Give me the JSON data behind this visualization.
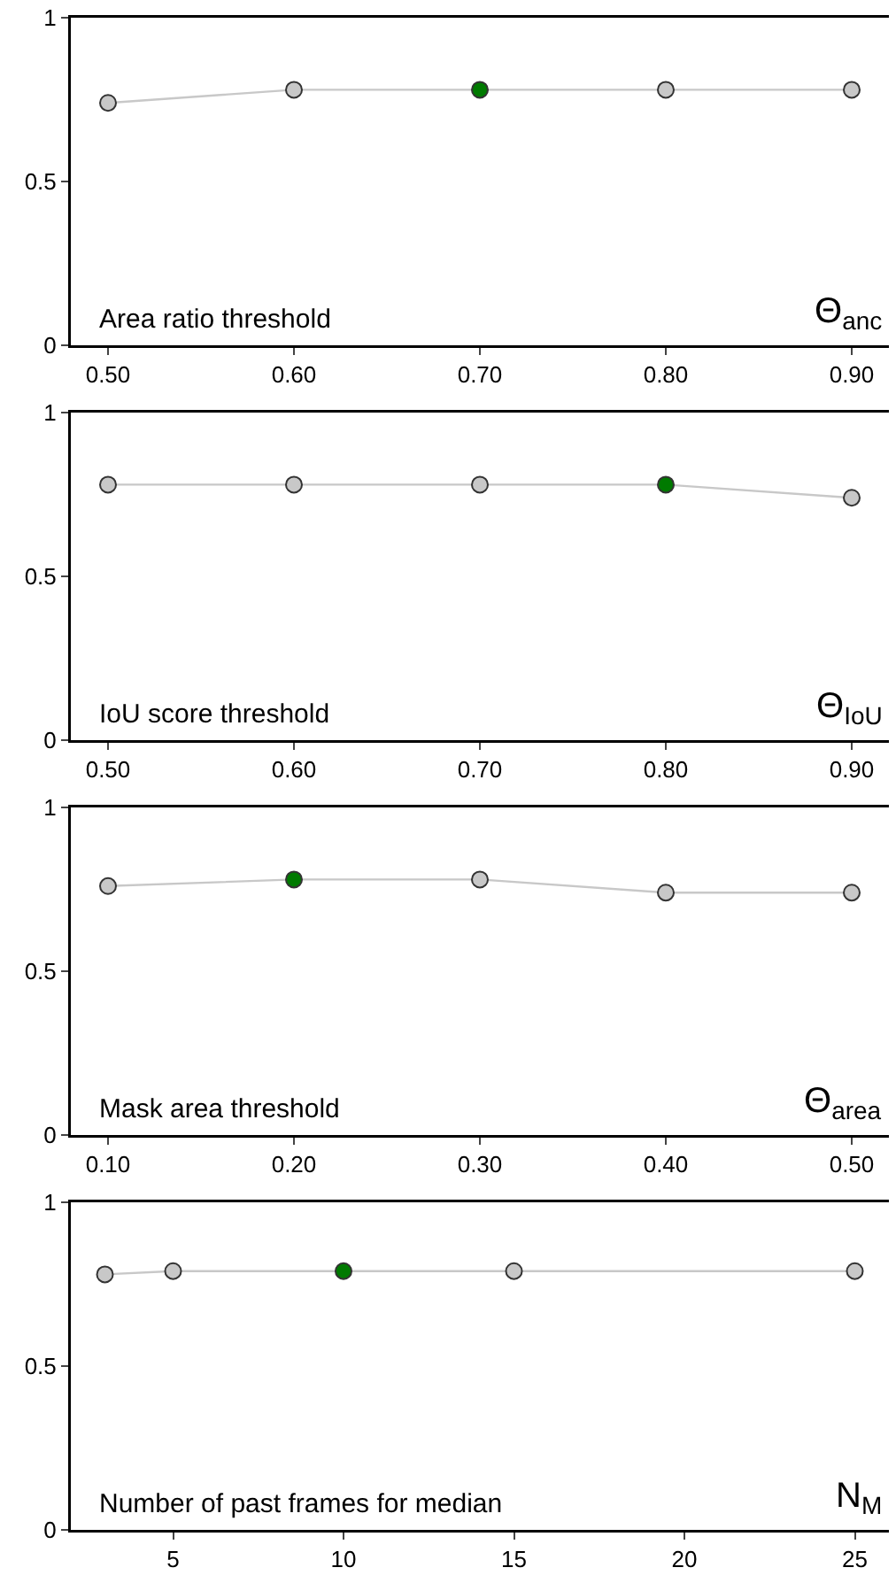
{
  "chart_data": [
    {
      "type": "line",
      "x": [
        0.5,
        0.6,
        0.7,
        0.8,
        0.9
      ],
      "series": [
        {
          "color": "#c8c8c8",
          "colors": [
            "#c8c8c8",
            "#c8c8c8",
            "#007a00",
            "#c8c8c8",
            "#c8c8c8"
          ],
          "values": [
            0.74,
            0.78,
            0.78,
            0.78,
            0.78
          ]
        }
      ],
      "xlim": [
        0.48,
        0.92
      ],
      "xticks": [
        {
          "value": 0.5,
          "label": "0.50"
        },
        {
          "value": 0.6,
          "label": "0.60"
        },
        {
          "value": 0.7,
          "label": "0.70"
        },
        {
          "value": 0.8,
          "label": "0.80"
        },
        {
          "value": 0.9,
          "label": "0.90"
        }
      ],
      "ylim": [
        0,
        1
      ],
      "yticks": [
        0,
        0.5,
        1
      ],
      "marker": "circle",
      "grid": false,
      "annotations": [
        "Area ratio threshold",
        "Θ$_{anc}$"
      ]
    },
    {
      "type": "line",
      "x": [
        0.5,
        0.6,
        0.7,
        0.8,
        0.9
      ],
      "series": [
        {
          "color": "#c8c8c8",
          "colors": [
            "#c8c8c8",
            "#c8c8c8",
            "#c8c8c8",
            "#007a00",
            "#c8c8c8"
          ],
          "values": [
            0.78,
            0.78,
            0.78,
            0.78,
            0.74
          ]
        }
      ],
      "xlim": [
        0.48,
        0.92
      ],
      "xticks": [
        {
          "value": 0.5,
          "label": "0.50"
        },
        {
          "value": 0.6,
          "label": "0.60"
        },
        {
          "value": 0.7,
          "label": "0.70"
        },
        {
          "value": 0.8,
          "label": "0.80"
        },
        {
          "value": 0.9,
          "label": "0.90"
        }
      ],
      "ylim": [
        0,
        1
      ],
      "yticks": [
        0,
        0.5,
        1
      ],
      "marker": "circle",
      "grid": false,
      "annotations": [
        "IoU score threshold",
        "Θ$_{IoU}$"
      ]
    },
    {
      "type": "line",
      "x": [
        0.1,
        0.2,
        0.3,
        0.4,
        0.5
      ],
      "series": [
        {
          "color": "#c8c8c8",
          "colors": [
            "#c8c8c8",
            "#007a00",
            "#c8c8c8",
            "#c8c8c8",
            "#c8c8c8"
          ],
          "values": [
            0.76,
            0.78,
            0.78,
            0.74,
            0.74
          ]
        }
      ],
      "xlim": [
        0.08,
        0.52
      ],
      "xticks": [
        {
          "value": 0.1,
          "label": "0.10"
        },
        {
          "value": 0.2,
          "label": "0.20"
        },
        {
          "value": 0.3,
          "label": "0.30"
        },
        {
          "value": 0.4,
          "label": "0.40"
        },
        {
          "value": 0.5,
          "label": "0.50"
        }
      ],
      "ylim": [
        0,
        1
      ],
      "yticks": [
        0,
        0.5,
        1
      ],
      "marker": "circle",
      "grid": false,
      "annotations": [
        "Mask area threshold",
        "Θ$_{area}$"
      ]
    },
    {
      "type": "line",
      "x": [
        3,
        5,
        10,
        15,
        25
      ],
      "series": [
        {
          "color": "#c8c8c8",
          "colors": [
            "#c8c8c8",
            "#c8c8c8",
            "#007a00",
            "#c8c8c8",
            "#c8c8c8"
          ],
          "values": [
            0.78,
            0.79,
            0.79,
            0.79,
            0.79
          ]
        }
      ],
      "xlim": [
        2,
        26
      ],
      "xticks": [
        5,
        10,
        15,
        20,
        25
      ],
      "ylim": [
        0,
        1
      ],
      "yticks": [
        0,
        0.5,
        1
      ],
      "marker": "circle",
      "grid": false,
      "annotations": [
        "Number of past frames for median",
        "N$_{M}$"
      ]
    }
  ]
}
